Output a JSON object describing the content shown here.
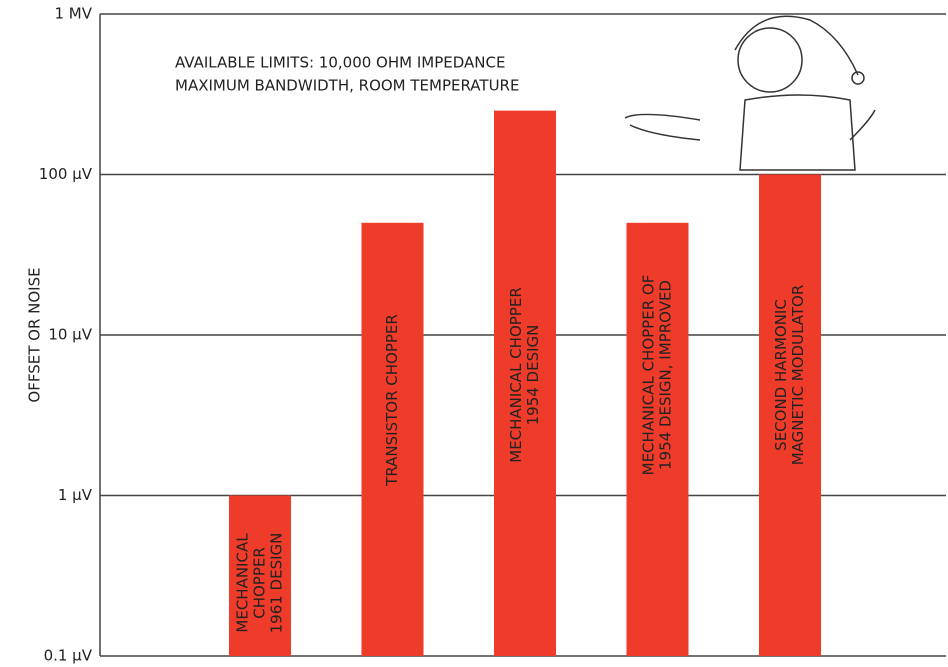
{
  "chart_data": {
    "type": "bar",
    "y_label": "OFFSET OR NOISE",
    "annotation": [
      "AVAILABLE LIMITS: 10,000 OHM IMPEDANCE",
      "MAXIMUM BANDWIDTH, ROOM TEMPERATURE"
    ],
    "categories": [
      [
        "MECHANICAL",
        "CHOPPER",
        "1961 DESIGN"
      ],
      [
        "TRANSISTOR CHOPPER"
      ],
      [
        "MECHANICAL CHOPPER",
        "1954 DESIGN"
      ],
      [
        "MECHANICAL CHOPPER OF",
        "1954 DESIGN, IMPROVED"
      ],
      [
        "SECOND HARMONIC",
        "MAGNETIC MODULATOR"
      ]
    ],
    "values": [
      1,
      50,
      250,
      50,
      100
    ],
    "color": "#ef3b2a",
    "log_scale": true,
    "grid": true,
    "ylim": [
      0.1,
      1000
    ],
    "yticks": [
      {
        "value": 0.1,
        "label": "0.1 µV"
      },
      {
        "value": 1,
        "label": "1 µV"
      },
      {
        "value": 10,
        "label": "10 µV"
      },
      {
        "value": 100,
        "label": "100 µV"
      },
      {
        "value": 1000,
        "label": "1 MV"
      }
    ]
  }
}
